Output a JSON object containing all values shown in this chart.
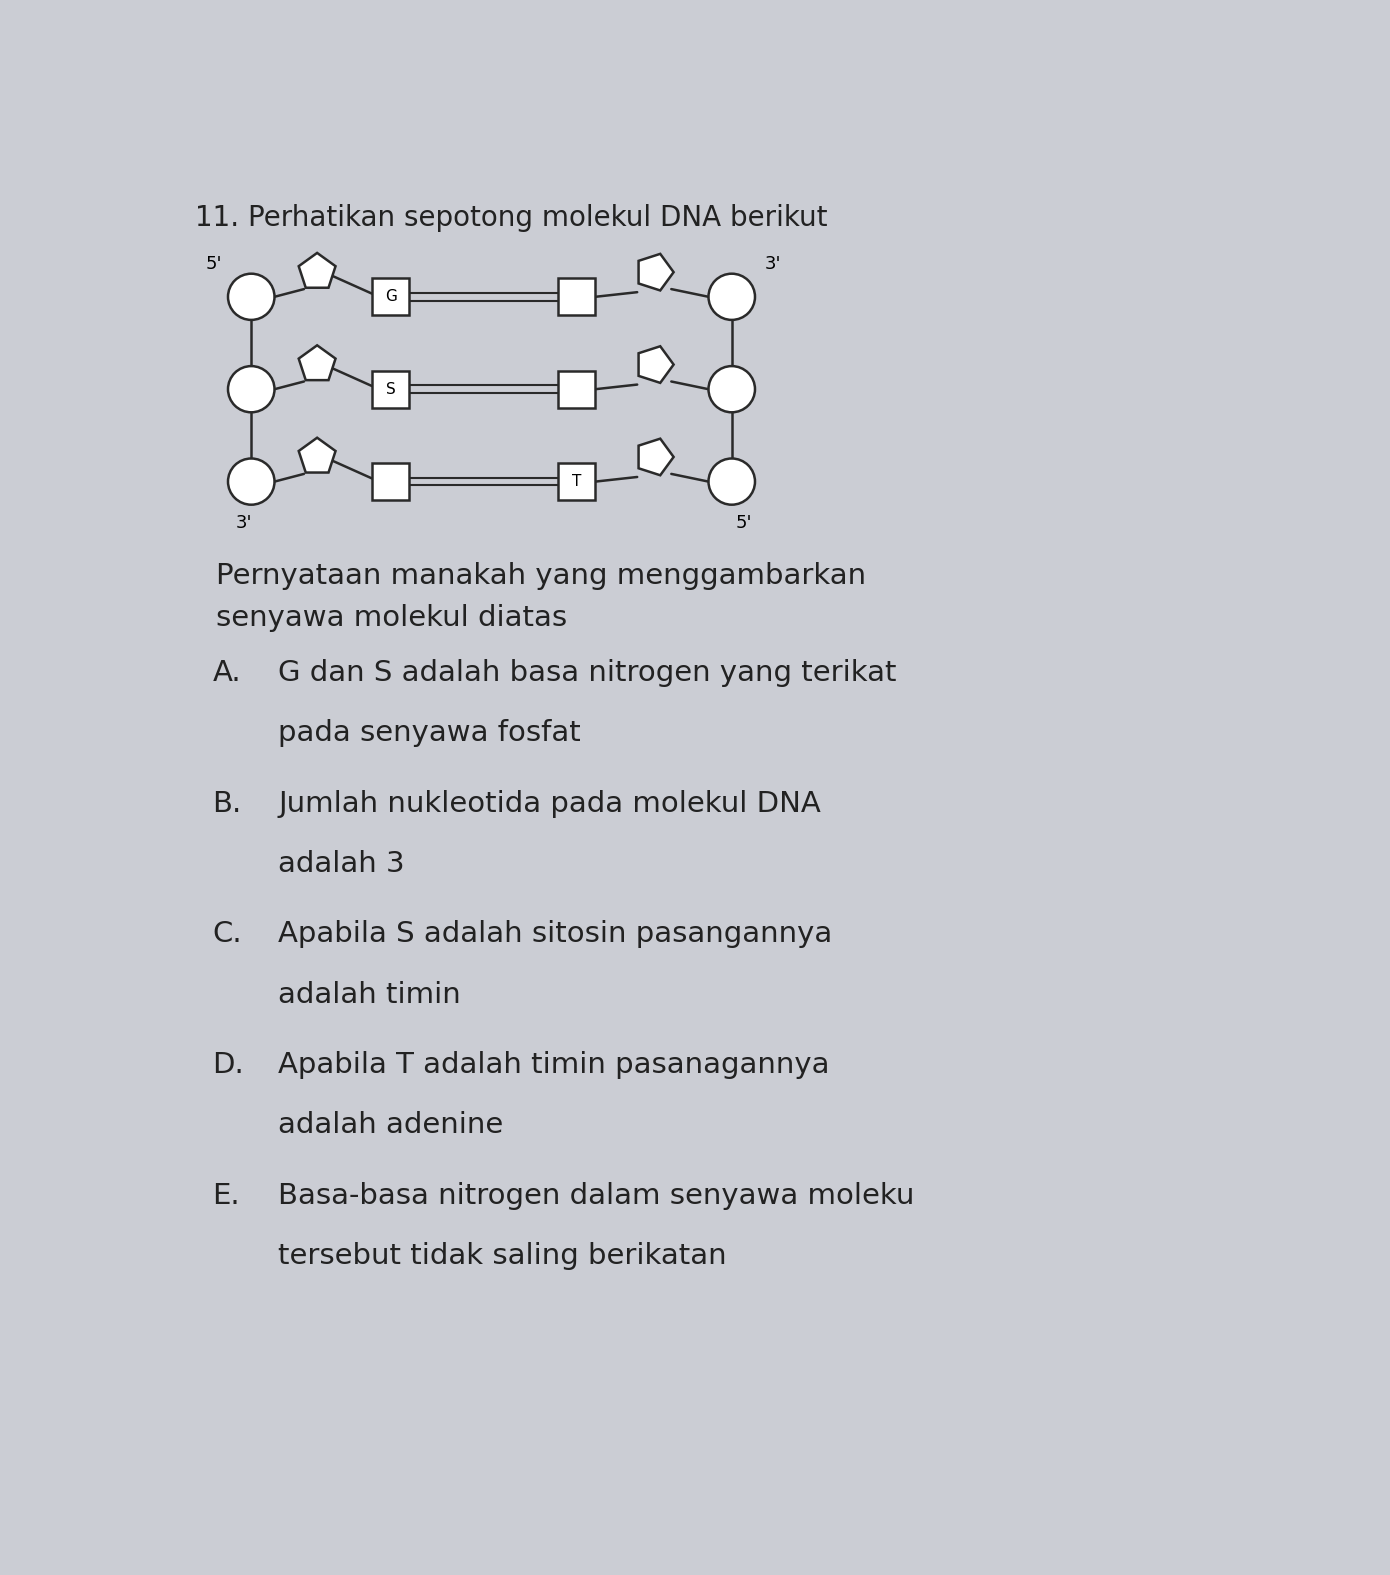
{
  "title": "11. Perhatikan sepotong molekul DNA berikut",
  "background_color": "#cbcdd4",
  "text_color": "#222222",
  "question_text": "Pernyataan manakah yang menggambarkan\nsenyawa molekul diatas",
  "options": [
    {
      "letter": "A.",
      "line1": "G dan S adalah basa nitrogen yang terikat",
      "line2": "pada senyawa fosfat"
    },
    {
      "letter": "B.",
      "line1": "Jumlah nukleotida pada molekul DNA",
      "line2": "adalah 3"
    },
    {
      "letter": "C.",
      "line1": "Apabila S adalah sitosin pasangannya",
      "line2": "adalah timin"
    },
    {
      "letter": "D.",
      "line1": "Apabila T adalah timin pasanagannya",
      "line2": "adalah adenine"
    },
    {
      "letter": "E.",
      "line1": "Basa-basa nitrogen dalam senyawa moleku",
      "line2": "tersebut tidak saling berikatan"
    }
  ],
  "base_labels_left": [
    "G",
    "S",
    ""
  ],
  "base_labels_right": [
    "",
    "",
    "T"
  ],
  "figure_width": 13.9,
  "figure_height": 15.75,
  "dpi": 100
}
